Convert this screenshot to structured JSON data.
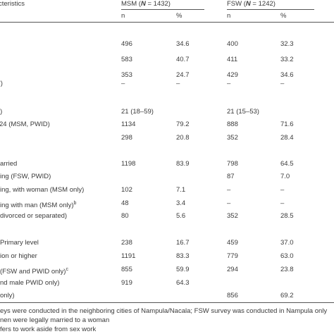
{
  "header": {
    "characteristics": "cteristics",
    "msm_group": "MSM (",
    "msm_N": "N",
    "msm_count": " = 1432)",
    "fsw_group": "FSW (",
    "fsw_N": "N",
    "fsw_count": " = 1242)",
    "sub_n_1": "n",
    "sub_pct_1": "%",
    "sub_n_2": "n",
    "sub_pct_2": "%"
  },
  "rows": [
    {
      "label": "",
      "msm_n": "496",
      "msm_pct": "34.6",
      "fsw_n": "400",
      "fsw_pct": "32.3"
    },
    {
      "label": "",
      "msm_n": "583",
      "msm_pct": "40.7",
      "fsw_n": "411",
      "fsw_pct": "33.2"
    },
    {
      "label": "",
      "msm_n": "353",
      "msm_pct": "24.7",
      "fsw_n": "429",
      "fsw_pct": "34.6"
    },
    {
      "label": "*)",
      "msm_n": "–",
      "msm_pct": "–",
      "fsw_n": "–",
      "fsw_pct": "–"
    },
    {
      "label": "l)",
      "msm_n": "21 (18–59)",
      "msm_pct": "",
      "fsw_n": "21 (15–53)",
      "fsw_pct": ""
    },
    {
      "label": "24 (MSM, PWID)",
      "msm_n": "1134",
      "msm_pct": "79.2",
      "fsw_n": "888",
      "fsw_pct": "71.6"
    },
    {
      "label": "",
      "msm_n": "298",
      "msm_pct": "20.8",
      "fsw_n": "352",
      "fsw_pct": "28.4"
    },
    {
      "label": "arried",
      "msm_n": "1198",
      "msm_pct": "83.9",
      "fsw_n": "798",
      "fsw_pct": "64.5"
    },
    {
      "label": "ing (FSW, PWID)",
      "msm_n": "",
      "msm_pct": "",
      "fsw_n": "87",
      "fsw_pct": "7.0"
    },
    {
      "label": "ing, with woman (MSM only)",
      "msm_n": "102",
      "msm_pct": "7.1",
      "fsw_n": "–",
      "fsw_pct": "–"
    },
    {
      "label": "ing with man (MSM only)",
      "label_sup": "b",
      "msm_n": "48",
      "msm_pct": "3.4",
      "fsw_n": "–",
      "fsw_pct": "–"
    },
    {
      "label": "divorced or separated)",
      "msm_n": "80",
      "msm_pct": "5.6",
      "fsw_n": "352",
      "fsw_pct": "28.5"
    },
    {
      "label": "Primary level",
      "msm_n": "238",
      "msm_pct": "16.7",
      "fsw_n": "459",
      "fsw_pct": "37.0"
    },
    {
      "label": "ion or higher",
      "msm_n": "1191",
      "msm_pct": "83.3",
      "fsw_n": "779",
      "fsw_pct": "63.0"
    },
    {
      "label": " (FSW and PWID only)",
      "label_sup": "c",
      "msm_n": "855",
      "msm_pct": "59.9",
      "fsw_n": "294",
      "fsw_pct": "23.8"
    },
    {
      "label": "nd male PWID only)",
      "msm_n": "919",
      "msm_pct": "64.3",
      "fsw_n": "",
      "fsw_pct": ""
    },
    {
      "label": "only)",
      "msm_n": "",
      "msm_pct": "",
      "fsw_n": "856",
      "fsw_pct": "69.2"
    }
  ],
  "footnotes": [
    "eys were conducted in the neighboring cities of Nampula/Nacala; FSW survey was conducted in Nampula only",
    "nen were legally married to a woman",
    "fers to work aside from sex work"
  ]
}
